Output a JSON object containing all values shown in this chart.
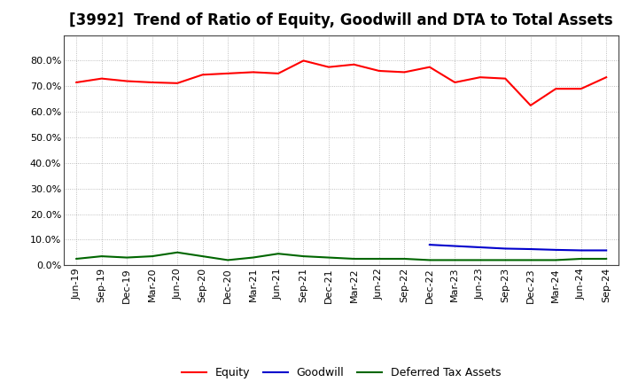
{
  "title": "[3992]  Trend of Ratio of Equity, Goodwill and DTA to Total Assets",
  "x_labels": [
    "Jun-19",
    "Sep-19",
    "Dec-19",
    "Mar-20",
    "Jun-20",
    "Sep-20",
    "Dec-20",
    "Mar-21",
    "Jun-21",
    "Sep-21",
    "Dec-21",
    "Mar-22",
    "Jun-22",
    "Sep-22",
    "Dec-22",
    "Mar-23",
    "Jun-23",
    "Sep-23",
    "Dec-23",
    "Mar-24",
    "Jun-24",
    "Sep-24"
  ],
  "equity": [
    71.5,
    73.0,
    72.0,
    71.5,
    71.2,
    74.5,
    75.0,
    75.5,
    75.0,
    80.0,
    77.5,
    78.5,
    76.0,
    75.5,
    77.5,
    71.5,
    73.5,
    73.0,
    62.5,
    69.0,
    69.0,
    73.5
  ],
  "goodwill": [
    null,
    null,
    null,
    null,
    null,
    null,
    null,
    null,
    null,
    null,
    null,
    null,
    null,
    null,
    8.0,
    7.5,
    7.0,
    6.5,
    6.3,
    6.0,
    5.8,
    5.8
  ],
  "dta": [
    2.5,
    3.5,
    3.0,
    3.5,
    5.0,
    3.5,
    2.0,
    3.0,
    4.5,
    3.5,
    3.0,
    2.5,
    2.5,
    2.5,
    2.0,
    2.0,
    2.0,
    2.0,
    2.0,
    2.0,
    2.5,
    2.5
  ],
  "equity_color": "#FF0000",
  "goodwill_color": "#0000CC",
  "dta_color": "#006600",
  "background_color": "#FFFFFF",
  "plot_bg_color": "#FFFFFF",
  "grid_color": "#999999",
  "ylim_min": 0,
  "ylim_max": 90,
  "yticks": [
    0,
    10,
    20,
    30,
    40,
    50,
    60,
    70,
    80
  ],
  "legend_labels": [
    "Equity",
    "Goodwill",
    "Deferred Tax Assets"
  ],
  "title_fontsize": 12,
  "tick_fontsize": 8,
  "legend_fontsize": 9,
  "linewidth": 1.5
}
